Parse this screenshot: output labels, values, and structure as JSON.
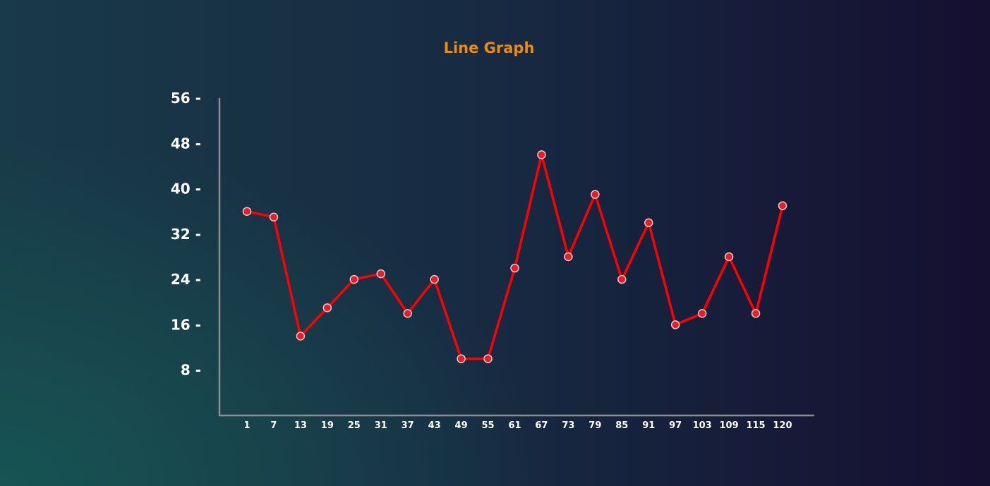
{
  "chart_data": {
    "type": "line",
    "title": "Line Graph",
    "xlabel": "",
    "ylabel": "",
    "categories": [
      "1",
      "7",
      "13",
      "19",
      "25",
      "31",
      "37",
      "43",
      "49",
      "55",
      "61",
      "67",
      "73",
      "79",
      "85",
      "91",
      "97",
      "103",
      "109",
      "115",
      "120"
    ],
    "series": [
      {
        "values": [
          36,
          35,
          14,
          19,
          24,
          25,
          18,
          24,
          10,
          10,
          26,
          46,
          28,
          39,
          24,
          34,
          16,
          18,
          28,
          18,
          37
        ]
      }
    ],
    "yticks": [
      "8 -",
      "16 -",
      "24 -",
      "32 -",
      "40 -",
      "48 -",
      "56 -"
    ],
    "ylim": [
      0,
      56
    ],
    "grid": false,
    "legend": "none",
    "colors": {
      "line": "#ff0000",
      "marker_fill": "#e0202a",
      "marker_stroke": "#f5c6c6",
      "axis": "#8a8f94",
      "title": "#ef8a0c",
      "tick_text": "#ffffff"
    }
  }
}
